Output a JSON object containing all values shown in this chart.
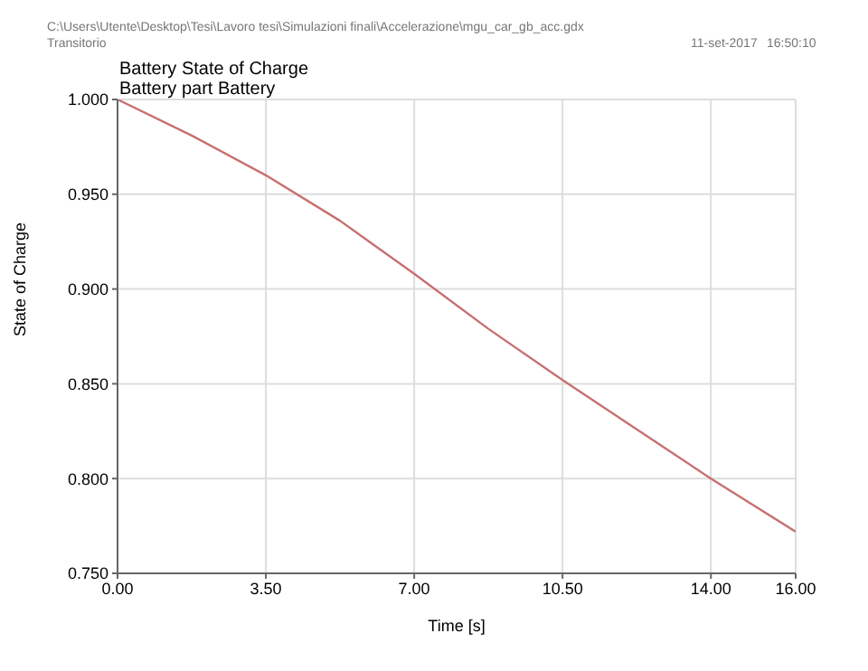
{
  "chart_data": {
    "type": "line",
    "title": "Battery State of Charge",
    "subtitle": "Battery part Battery",
    "xlabel": "Time [s]",
    "ylabel": "State of Charge",
    "annotations": [
      "C:\\Users\\Utente\\Desktop\\Tesi\\Lavoro tesi\\Simulazioni finali\\Accelerazione\\mgu_car_gb_acc.gdx",
      "Transitorio",
      "11-set-2017",
      "16:50:10"
    ],
    "x": [
      0,
      1.75,
      3.5,
      5.25,
      7,
      8.75,
      10.5,
      12.25,
      14,
      16
    ],
    "series": [
      {
        "color": "#c87070",
        "values": [
          1.0,
          0.981,
          0.96,
          0.936,
          0.908,
          0.879,
          0.852,
          0.826,
          0.8,
          0.772
        ]
      }
    ],
    "xlim": [
      0,
      16
    ],
    "xticks": [
      {
        "value": 0,
        "label": "0.00"
      },
      {
        "value": 3.5,
        "label": "3.50"
      },
      {
        "value": 7,
        "label": "7.00"
      },
      {
        "value": 10.5,
        "label": "10.50"
      },
      {
        "value": 14,
        "label": "14.00"
      },
      {
        "value": 16,
        "label": "16.00"
      }
    ],
    "ylim": [
      0.75,
      1.0
    ],
    "yticks": [
      {
        "value": 0.75,
        "label": "0.750"
      },
      {
        "value": 0.8,
        "label": "0.800"
      },
      {
        "value": 0.85,
        "label": "0.850"
      },
      {
        "value": 0.9,
        "label": "0.900"
      },
      {
        "value": 0.95,
        "label": "0.950"
      },
      {
        "value": 1.0,
        "label": "1.000"
      }
    ],
    "grid": true,
    "legend": false,
    "marker": "none",
    "line_style": "solid"
  }
}
